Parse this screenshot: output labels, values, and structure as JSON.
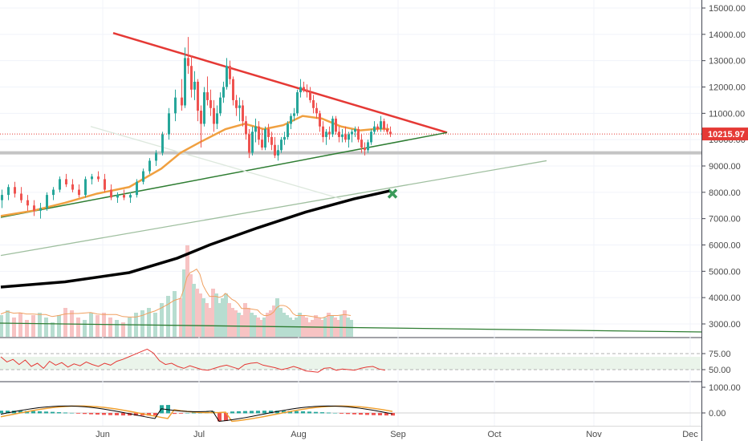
{
  "chart_data": [
    {
      "type": "candlestick",
      "name_panel": "price",
      "y_axis_ticks": [
        "15000.00",
        "14000.00",
        "13000.00",
        "12000.00",
        "11000.00",
        "10000.00",
        "9000.00",
        "8000.00",
        "7000.00",
        "6000.00",
        "5000.00",
        "4000.00",
        "3000.00"
      ],
      "y_tick_values": [
        15000,
        14000,
        13000,
        12000,
        11000,
        10000,
        9000,
        8000,
        7000,
        6000,
        5000,
        4000,
        3000
      ],
      "x_axis_ticks": [
        "Jun",
        "Jul",
        "Aug",
        "Sep",
        "Oct",
        "Nov",
        "Dec"
      ],
      "x_tick_days": [
        31,
        61,
        92,
        123,
        153,
        184,
        214
      ],
      "last_price_label": "10215.97",
      "last_price": 10215.97,
      "support_level": 9500,
      "colors": {
        "up": "#26a69a",
        "down": "#ef5350",
        "ma_short": "#f0a040",
        "ma_long": "#000000",
        "resistance": "#e53935",
        "support": "#2e7d32",
        "last_price": "#e53935"
      },
      "candles": [
        [
          0,
          7700,
          8100,
          7400,
          7900
        ],
        [
          2,
          7900,
          8300,
          7700,
          8200
        ],
        [
          4,
          8200,
          8400,
          7800,
          7950
        ],
        [
          6,
          7950,
          8200,
          7600,
          7700
        ],
        [
          8,
          7700,
          7900,
          7300,
          7500
        ],
        [
          10,
          7500,
          7700,
          7100,
          7300
        ],
        [
          12,
          7300,
          7600,
          7000,
          7400
        ],
        [
          14,
          7400,
          8000,
          7300,
          7900
        ],
        [
          16,
          7900,
          8200,
          7700,
          8100
        ],
        [
          18,
          8100,
          8600,
          8000,
          8500
        ],
        [
          20,
          8500,
          8700,
          8200,
          8300
        ],
        [
          22,
          8300,
          8500,
          8000,
          8100
        ],
        [
          24,
          8100,
          8300,
          7800,
          7900
        ],
        [
          26,
          7900,
          8600,
          7800,
          8500
        ],
        [
          28,
          8500,
          8700,
          8300,
          8600
        ],
        [
          30,
          8600,
          8800,
          8400,
          8500
        ],
        [
          32,
          8500,
          8700,
          8000,
          8100
        ],
        [
          34,
          8100,
          8300,
          7700,
          7800
        ],
        [
          36,
          7800,
          8000,
          7600,
          7900
        ],
        [
          38,
          7900,
          8100,
          7700,
          7800
        ],
        [
          40,
          7800,
          8000,
          7600,
          7900
        ],
        [
          42,
          7900,
          8500,
          7800,
          8400
        ],
        [
          44,
          8400,
          8900,
          8300,
          8800
        ],
        [
          46,
          8800,
          9300,
          8700,
          9200
        ],
        [
          48,
          9200,
          9600,
          9000,
          9500
        ],
        [
          50,
          9500,
          10300,
          9400,
          10200
        ],
        [
          52,
          10200,
          11200,
          10000,
          11000
        ],
        [
          54,
          11000,
          11900,
          10700,
          11600
        ],
        [
          56,
          11600,
          12300,
          11100,
          11300
        ],
        [
          57,
          11300,
          13500,
          11200,
          13100
        ],
        [
          58,
          13100,
          13900,
          12500,
          12800
        ],
        [
          59,
          12800,
          13200,
          11600,
          11900
        ],
        [
          60,
          11900,
          12600,
          11500,
          12200
        ],
        [
          61,
          12200,
          12300,
          10700,
          11100
        ],
        [
          62,
          11100,
          11300,
          9700,
          10600
        ],
        [
          63,
          10600,
          12000,
          10500,
          11800
        ],
        [
          64,
          11800,
          12400,
          11300,
          11500
        ],
        [
          65,
          11500,
          11900,
          10900,
          11200
        ],
        [
          66,
          11200,
          11500,
          10300,
          10600
        ],
        [
          67,
          10600,
          11300,
          10400,
          11000
        ],
        [
          68,
          11000,
          11800,
          10900,
          11600
        ],
        [
          69,
          11600,
          12200,
          11400,
          12000
        ],
        [
          70,
          12000,
          13100,
          11900,
          12800
        ],
        [
          71,
          12800,
          13000,
          12100,
          12300
        ],
        [
          72,
          12300,
          12400,
          11300,
          11500
        ],
        [
          73,
          11500,
          11700,
          10900,
          11200
        ],
        [
          74,
          11200,
          11600,
          10700,
          11300
        ],
        [
          75,
          11300,
          11500,
          10500,
          10700
        ],
        [
          76,
          10700,
          10900,
          10000,
          10200
        ],
        [
          77,
          10200,
          10400,
          9300,
          9500
        ],
        [
          78,
          9500,
          10500,
          9400,
          10300
        ],
        [
          79,
          10300,
          10800,
          9900,
          10500
        ],
        [
          80,
          10500,
          10700,
          9800,
          10000
        ],
        [
          81,
          10000,
          10400,
          9600,
          9700
        ],
        [
          82,
          9700,
          10500,
          9600,
          10400
        ],
        [
          83,
          10400,
          10600,
          9900,
          10100
        ],
        [
          84,
          10100,
          10300,
          9600,
          9800
        ],
        [
          85,
          9800,
          10100,
          9300,
          9400
        ],
        [
          86,
          9400,
          9800,
          9200,
          9600
        ],
        [
          87,
          9600,
          10100,
          9500,
          10000
        ],
        [
          88,
          10000,
          10300,
          9800,
          10100
        ],
        [
          89,
          10100,
          10700,
          10000,
          10600
        ],
        [
          90,
          10600,
          11000,
          10400,
          10900
        ],
        [
          91,
          10900,
          11200,
          10700,
          11000
        ],
        [
          92,
          11000,
          11900,
          10900,
          11800
        ],
        [
          93,
          11800,
          12300,
          11600,
          12000
        ],
        [
          94,
          12000,
          12200,
          11800,
          11900
        ],
        [
          95,
          11900,
          12100,
          11600,
          11800
        ],
        [
          96,
          11800,
          12000,
          11400,
          11500
        ],
        [
          97,
          11500,
          11700,
          11000,
          11200
        ],
        [
          98,
          11200,
          11400,
          10800,
          11000
        ],
        [
          99,
          11000,
          11100,
          10300,
          10500
        ],
        [
          100,
          10500,
          10700,
          9900,
          10100
        ],
        [
          101,
          10100,
          10400,
          9800,
          10300
        ],
        [
          102,
          10300,
          10500,
          10000,
          10200
        ],
        [
          103,
          10200,
          10900,
          10100,
          10800
        ],
        [
          104,
          10800,
          10900,
          10200,
          10300
        ],
        [
          105,
          10300,
          10500,
          9900,
          10100
        ],
        [
          106,
          10100,
          10400,
          9900,
          10200
        ],
        [
          107,
          10200,
          10500,
          9900,
          10000
        ],
        [
          108,
          10000,
          10300,
          9700,
          10200
        ],
        [
          109,
          10200,
          10400,
          9900,
          10300
        ],
        [
          110,
          10300,
          10500,
          10100,
          10400
        ],
        [
          111,
          10400,
          10500,
          9900,
          10000
        ],
        [
          112,
          10000,
          10200,
          9500,
          9700
        ],
        [
          113,
          9700,
          9900,
          9400,
          9600
        ],
        [
          114,
          9600,
          10000,
          9500,
          9900
        ],
        [
          115,
          9900,
          10400,
          9800,
          10300
        ],
        [
          116,
          10300,
          10700,
          10200,
          10500
        ],
        [
          117,
          10500,
          10600,
          10300,
          10400
        ],
        [
          118,
          10400,
          10900,
          10300,
          10700
        ],
        [
          119,
          10700,
          10800,
          10300,
          10400
        ],
        [
          120,
          10400,
          10600,
          10200,
          10300
        ],
        [
          121,
          10300,
          10500,
          10100,
          10200
        ]
      ],
      "ma_short_points": [
        [
          0,
          7100
        ],
        [
          10,
          7300
        ],
        [
          20,
          7600
        ],
        [
          30,
          7950
        ],
        [
          40,
          8200
        ],
        [
          50,
          8900
        ],
        [
          56,
          9500
        ],
        [
          62,
          9900
        ],
        [
          70,
          10400
        ],
        [
          76,
          10600
        ],
        [
          82,
          10400
        ],
        [
          88,
          10550
        ],
        [
          94,
          10900
        ],
        [
          100,
          10800
        ],
        [
          106,
          10500
        ],
        [
          112,
          10350
        ],
        [
          118,
          10420
        ],
        [
          121,
          10400
        ]
      ],
      "ma_long_points": [
        [
          0,
          4400
        ],
        [
          20,
          4600
        ],
        [
          40,
          4950
        ],
        [
          55,
          5500
        ],
        [
          65,
          6000
        ],
        [
          80,
          6650
        ],
        [
          95,
          7250
        ],
        [
          110,
          7750
        ],
        [
          121,
          8050
        ]
      ],
      "trendlines": [
        {
          "name": "resistance",
          "from": [
            35,
            14050
          ],
          "to": [
            139,
            10270
          ],
          "color": "#e53935",
          "width": 2.5
        },
        {
          "name": "ascending-support",
          "from": [
            0,
            7050
          ],
          "to": [
            139,
            10270
          ],
          "color": "#2e7d32",
          "width": 1.5
        },
        {
          "name": "long-uptrend",
          "from": [
            0,
            5600
          ],
          "to": [
            170,
            9200
          ],
          "color": "#9fbf9f",
          "width": 1.3
        },
        {
          "name": "faded-downtrend",
          "from": [
            28,
            10500
          ],
          "to": [
            106,
            7750
          ],
          "color": "#dde8dd",
          "width": 1.3
        }
      ],
      "marker": {
        "type": "x",
        "day": 122,
        "value": 7950,
        "color": "#3a9a5a"
      }
    },
    {
      "type": "bar",
      "name_panel": "volume",
      "values": [
        0.45,
        0.55,
        0.4,
        0.5,
        0.35,
        0.45,
        0.5,
        0.4,
        0.3,
        0.45,
        0.6,
        0.55,
        0.4,
        0.35,
        0.5,
        0.45,
        0.5,
        0.4,
        0.35,
        0.3,
        0.4,
        0.5,
        0.55,
        0.6,
        0.5,
        0.7,
        0.85,
        0.95,
        0.8,
        1.4,
        1.9,
        1.3,
        1.1,
        1.0,
        0.9,
        0.8,
        0.7,
        0.6,
        1.0,
        0.9,
        0.7,
        0.8,
        0.9,
        0.7,
        0.6,
        0.55,
        0.5,
        0.45,
        0.7,
        0.6,
        0.5,
        0.45,
        0.4,
        0.35,
        0.4,
        0.5,
        0.55,
        0.65,
        0.8,
        0.6,
        0.5,
        0.45,
        0.4,
        0.35,
        0.4,
        0.5,
        0.45,
        0.4,
        0.3,
        0.35,
        0.45,
        0.4,
        0.35,
        0.4,
        0.5,
        0.45,
        0.4,
        0.35,
        0.45,
        0.55,
        0.4,
        0.35
      ],
      "baseline_line_color": "#2e7d32",
      "ma_color": "#f0a060"
    },
    {
      "type": "line",
      "name_panel": "rsi",
      "y_axis_ticks": [
        "75.00",
        "50.00"
      ],
      "y_tick_values": [
        75,
        50
      ],
      "band": [
        50,
        70
      ],
      "values": [
        70,
        62,
        66,
        58,
        65,
        55,
        60,
        52,
        63,
        57,
        61,
        54,
        59,
        56,
        62,
        58,
        55,
        60,
        57,
        63,
        66,
        70,
        74,
        78,
        82,
        76,
        64,
        58,
        60,
        55,
        52,
        56,
        53,
        50,
        49,
        52,
        55,
        57,
        54,
        51,
        58,
        60,
        61,
        57,
        55,
        53,
        50,
        52,
        55,
        52,
        48,
        47,
        46,
        52,
        53,
        49,
        51,
        50,
        49,
        52,
        54,
        55,
        51,
        49
      ]
    },
    {
      "type": "histogram",
      "name_panel": "macd",
      "y_axis_ticks": [
        "1000.00",
        "0.00"
      ],
      "y_tick_values": [
        1000,
        0
      ],
      "colors": {
        "macd": "#000000",
        "signal": "#f0a030",
        "hist_up": "#26a69a",
        "hist_down": "#ef5350"
      }
    }
  ]
}
